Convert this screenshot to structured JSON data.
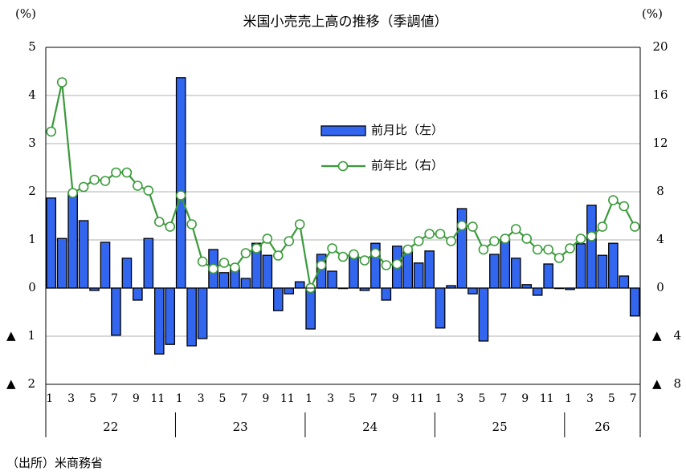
{
  "chart_data": {
    "type": "bar_line",
    "title": "米国小売売上高の推移（季調値）",
    "y_unit": "(%)",
    "y2_unit": "(%)",
    "source": "（出所）米商務省",
    "categories": [
      "1",
      null,
      "3",
      null,
      "5",
      null,
      "7",
      null,
      "9",
      null,
      "11",
      null,
      "1",
      null,
      "3",
      null,
      "5",
      null,
      "7",
      null,
      "9",
      null,
      "11",
      null,
      "1",
      null,
      "3",
      null,
      "5",
      null,
      "7",
      null,
      "9",
      null,
      "11",
      null,
      "1",
      null,
      "3",
      null,
      "5",
      null,
      "7",
      null,
      "9",
      null,
      "11",
      null,
      "1",
      null,
      "3",
      null,
      "5",
      null,
      "7"
    ],
    "x_groups": [
      "22",
      "23",
      "24",
      "25",
      "26"
    ],
    "ylim": [
      -2,
      5
    ],
    "yticks": [
      {
        "value": -2,
        "label": "▲　2"
      },
      {
        "value": -1,
        "label": "▲　1"
      },
      0,
      1,
      2,
      3,
      4,
      5
    ],
    "y2lim": [
      -8,
      20
    ],
    "y2ticks": [
      {
        "value": -8,
        "label": "▲　8"
      },
      {
        "value": -4,
        "label": "▲　4"
      },
      0,
      4,
      8,
      12,
      16,
      20
    ],
    "grid": true,
    "series": [
      {
        "name": "前月比（左）",
        "kind": "bar",
        "color": "#3366ee",
        "values": [
          1.87,
          1.03,
          1.98,
          1.4,
          -0.05,
          0.95,
          -0.98,
          0.62,
          -0.25,
          1.03,
          -1.37,
          -1.17,
          4.37,
          -1.2,
          -1.05,
          0.8,
          0.32,
          0.4,
          0.2,
          0.93,
          0.68,
          -0.47,
          -0.12,
          0.13,
          -0.85,
          0.7,
          0.35,
          -0.01,
          0.7,
          -0.05,
          0.93,
          -0.25,
          0.87,
          0.75,
          0.52,
          0.77,
          -0.83,
          0.05,
          1.65,
          -0.12,
          -1.1,
          0.7,
          1.02,
          0.62,
          0.07,
          -0.15,
          0.5,
          -0.01,
          -0.03,
          0.92,
          1.72,
          0.68,
          0.93,
          0.25,
          -0.58
        ]
      },
      {
        "name": "前年比（右）",
        "kind": "line",
        "axis": "y2",
        "color": "#3a9a3a",
        "values": [
          13.0,
          17.1,
          7.9,
          8.4,
          9.0,
          8.9,
          9.6,
          9.6,
          8.5,
          8.1,
          5.5,
          5.1,
          7.7,
          5.3,
          2.2,
          1.6,
          2.1,
          1.7,
          2.9,
          3.3,
          4.1,
          2.7,
          3.9,
          5.3,
          0.0,
          1.9,
          3.3,
          2.6,
          2.8,
          2.3,
          2.9,
          1.9,
          2.0,
          3.2,
          3.9,
          4.5,
          4.5,
          3.9,
          5.2,
          5.1,
          3.2,
          3.9,
          4.1,
          4.9,
          4.1,
          3.2,
          3.2,
          2.5,
          3.3,
          4.1,
          4.3,
          5.1,
          7.3,
          6.8,
          5.1
        ]
      }
    ]
  }
}
